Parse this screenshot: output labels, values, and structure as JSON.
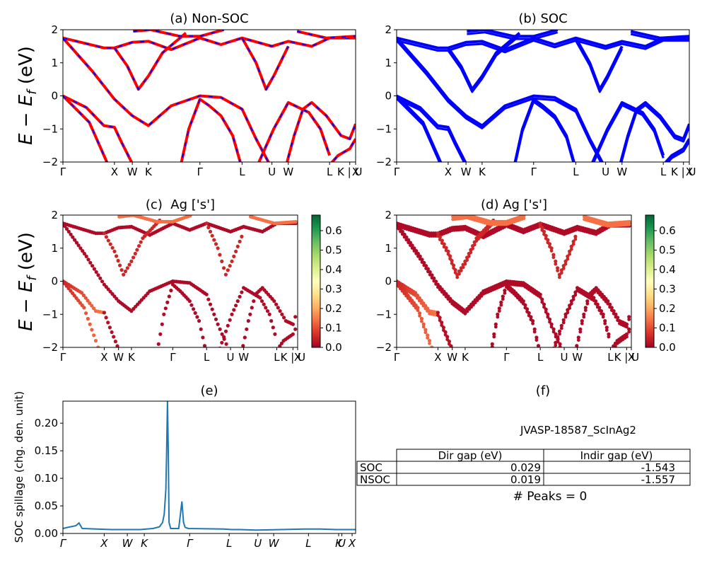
{
  "figure": {
    "ylabel_ab": "E − E",
    "ylabel_sub": "f",
    "ylabel_unit": " (eV)",
    "ylabel_e": "SOC spillage (chg. den. unit)"
  },
  "chart_data": [
    {
      "id": "a",
      "type": "line",
      "title": "(a) Non-SOC",
      "ylim": [
        -2,
        2
      ],
      "yticks": [
        "2",
        "1",
        "0",
        "−1",
        "−2"
      ],
      "xticks": [
        "Γ",
        "X",
        "W",
        "K",
        "Γ",
        "L",
        "U",
        "W",
        "L",
        "K | U",
        "X"
      ],
      "series": [
        {
          "color": "#ff0000"
        },
        {
          "color": "#0000ff",
          "style": "dashed"
        }
      ]
    },
    {
      "id": "b",
      "type": "line",
      "title": "(b) SOC",
      "ylim": [
        -2,
        2
      ],
      "yticks": [
        "2",
        "1",
        "0",
        "−1",
        "−2"
      ],
      "xticks": [
        "Γ",
        "X",
        "W",
        "K",
        "Γ",
        "L",
        "U",
        "W",
        "L",
        "K | U",
        "X"
      ],
      "series": [
        {
          "color": "#0000ff"
        }
      ]
    },
    {
      "id": "c",
      "type": "scatter",
      "title": "(c)  Ag ['s']",
      "ylim": [
        -2,
        2
      ],
      "yticks": [
        "2",
        "1",
        "0",
        "−1",
        "−2"
      ],
      "xticks": [
        "Γ",
        "X",
        "W",
        "K",
        "Γ",
        "L",
        "U",
        "W",
        "L",
        "K | U",
        "X"
      ],
      "colorbar": {
        "range": [
          0,
          0.68
        ],
        "ticks": [
          "0.0",
          "0.1",
          "0.2",
          "0.3",
          "0.4",
          "0.5",
          "0.6"
        ],
        "colormap": "RdYlGn"
      }
    },
    {
      "id": "d",
      "type": "scatter",
      "title": "(d) Ag ['s']",
      "ylim": [
        -2,
        2
      ],
      "yticks": [
        "2",
        "1",
        "0",
        "−1",
        "−2"
      ],
      "xticks": [
        "Γ",
        "X",
        "W",
        "K",
        "Γ",
        "L",
        "U",
        "W",
        "L",
        "K | U",
        "X"
      ],
      "colorbar": {
        "range": [
          0,
          0.68
        ],
        "ticks": [
          "0.0",
          "0.1",
          "0.2",
          "0.3",
          "0.4",
          "0.5",
          "0.6"
        ],
        "colormap": "RdYlGn"
      }
    },
    {
      "id": "e",
      "type": "line",
      "title": "(e)",
      "ylabel": "SOC spillage (chg. den. unit)",
      "ylim": [
        0,
        0.24
      ],
      "yticks": [
        "0.20",
        "0.15",
        "0.10",
        "0.05",
        "0.00"
      ],
      "xticks": [
        "Γ",
        "X",
        "W",
        "K",
        "Γ",
        "L",
        "U",
        "W",
        "L",
        "K",
        "U",
        "X"
      ],
      "series": [
        {
          "color": "#1f77b4",
          "x": [
            0,
            0.03,
            0.08,
            0.1,
            0.12,
            0.3,
            0.48,
            0.52,
            0.56,
            0.6,
            0.62,
            0.63,
            0.64,
            0.645,
            0.65,
            0.655,
            0.66,
            0.67,
            0.72,
            0.74,
            0.75,
            0.76,
            0.78,
            1.0,
            1.05,
            1.1,
            1.2,
            1.5,
            1.6,
            1.7,
            1.8,
            1.82
          ],
          "y": [
            0.009,
            0.011,
            0.014,
            0.019,
            0.009,
            0.007,
            0.007,
            0.008,
            0.009,
            0.012,
            0.02,
            0.035,
            0.08,
            0.15,
            0.24,
            0.15,
            0.02,
            0.009,
            0.009,
            0.058,
            0.02,
            0.011,
            0.009,
            0.008,
            0.007,
            0.007,
            0.006,
            0.008,
            0.008,
            0.007,
            0.007,
            0.007
          ]
        }
      ]
    },
    {
      "id": "f",
      "type": "table",
      "title": "(f)",
      "caption": "JVASP-18587_ScInAg2",
      "columns": [
        "Dir gap (eV)",
        "Indir gap (eV)"
      ],
      "rows": [
        {
          "label": "SOC",
          "values": [
            "0.029",
            "-1.543"
          ]
        },
        {
          "label": "NSOC",
          "values": [
            "0.019",
            "-1.557"
          ]
        }
      ],
      "footer": "# Peaks = 0"
    }
  ]
}
